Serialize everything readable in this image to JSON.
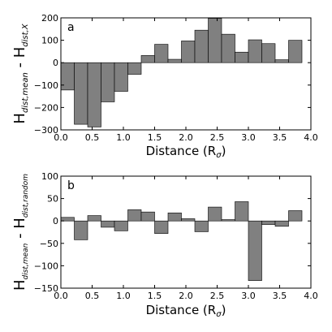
{
  "chart_data": [
    {
      "type": "bar",
      "panel_label": "a",
      "ylabel": {
        "main": "H",
        "sub1": "dist,mean",
        "mid": " - H",
        "sub2": "dist,X"
      },
      "xlabel": {
        "main": "Distance (R",
        "sub": "σ",
        "end": ")"
      },
      "xlim": [
        0.0,
        4.0
      ],
      "ylim": [
        -300,
        200
      ],
      "xticks": [
        "0.0",
        "0.5",
        "1.0",
        "1.5",
        "2.0",
        "2.5",
        "3.0",
        "3.5",
        "4.0"
      ],
      "xtick_values": [
        0.0,
        0.5,
        1.0,
        1.5,
        2.0,
        2.5,
        3.0,
        3.5,
        4.0
      ],
      "yticks": [
        "200",
        "100",
        "0",
        "−100",
        "−200",
        "−300"
      ],
      "ytick_values": [
        200,
        100,
        0,
        -100,
        -200,
        -300
      ],
      "bin_width": 0.2143,
      "bin_starts": [
        0.0,
        0.2143,
        0.4286,
        0.6429,
        0.8571,
        1.0714,
        1.2857,
        1.5,
        1.7143,
        1.9286,
        2.1429,
        2.3571,
        2.5714,
        2.7857,
        3.0,
        3.2143,
        3.4286,
        3.6429,
        3.8571
      ],
      "values": [
        -122,
        -275,
        -287,
        -175,
        -128,
        -52,
        32,
        82,
        15,
        97,
        145,
        198,
        127,
        47,
        102,
        85,
        13,
        100,
        0
      ],
      "bar_color": "#808080"
    },
    {
      "type": "bar",
      "panel_label": "b",
      "ylabel": {
        "main": "H",
        "sub1": "dist,mean",
        "mid": " - H",
        "sub2": "dist,random"
      },
      "xlabel": {
        "main": "Distance (R",
        "sub": "σ",
        "end": ")"
      },
      "xlim": [
        0.0,
        4.0
      ],
      "ylim": [
        -150,
        100
      ],
      "xticks": [
        "0.0",
        "0.5",
        "1.0",
        "1.5",
        "2.0",
        "2.5",
        "3.0",
        "3.5",
        "4.0"
      ],
      "xtick_values": [
        0.0,
        0.5,
        1.0,
        1.5,
        2.0,
        2.5,
        3.0,
        3.5,
        4.0
      ],
      "yticks": [
        "100",
        "50",
        "0",
        "−50",
        "−100",
        "−150"
      ],
      "ytick_values": [
        100,
        50,
        0,
        -50,
        -100,
        -150
      ],
      "bin_width": 0.2143,
      "bin_starts": [
        0.0,
        0.2143,
        0.4286,
        0.6429,
        0.8571,
        1.0714,
        1.2857,
        1.5,
        1.7143,
        1.9286,
        2.1429,
        2.3571,
        2.5714,
        2.7857,
        3.0,
        3.2143,
        3.4286,
        3.6429,
        3.8571
      ],
      "values": [
        8,
        -42,
        12,
        -14,
        -22,
        25,
        20,
        -28,
        18,
        5,
        -24,
        31,
        3,
        43,
        -133,
        -8,
        -12,
        23,
        0
      ],
      "bar_color": "#808080"
    }
  ]
}
